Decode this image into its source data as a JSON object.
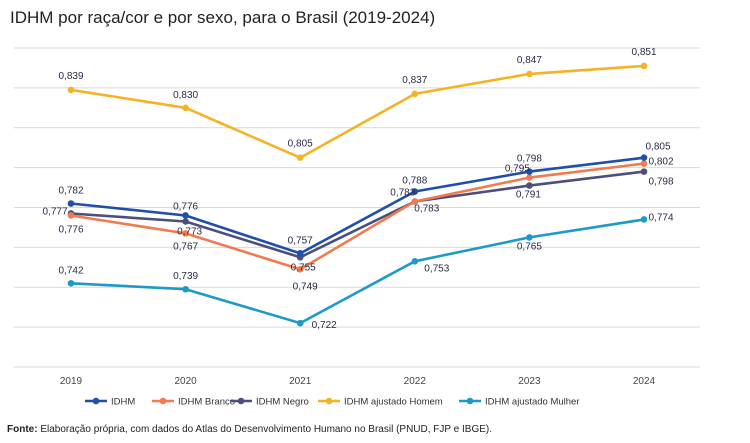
{
  "title": "IDHM por raça/cor e por sexo, para o Brasil (2019-2024)",
  "footer": {
    "label": "Fonte:",
    "text": " Elaboração própria, com dados do Atlas do Desenvolvimento Humano no Brasil (PNUD, FJP e IBGE)."
  },
  "chart_data": {
    "type": "line",
    "title": "IDHM por raça/cor e por sexo, para o Brasil (2019-2024)",
    "x": [
      "2019",
      "2020",
      "2021",
      "2022",
      "2023",
      "2024"
    ],
    "ylim": [
      0.7,
      0.86
    ],
    "grid": true,
    "legend_position": "bottom",
    "series": [
      {
        "name": "IDHM",
        "color": "#1f4fa8",
        "values": [
          0.782,
          0.776,
          0.757,
          0.788,
          0.798,
          0.805
        ],
        "labels": [
          "0,782",
          "0,776",
          "0,757",
          "0,788",
          "0,798",
          "0,805"
        ]
      },
      {
        "name": "IDHM Branco",
        "color": "#f07b4f",
        "values": [
          0.776,
          0.767,
          0.749,
          0.783,
          0.795,
          0.802
        ],
        "labels": [
          "0,776",
          "0,767",
          "0,749",
          "0,783",
          "0,795",
          "0,802"
        ]
      },
      {
        "name": "IDHM Negro",
        "color": "#4b4f7c",
        "values": [
          0.777,
          0.773,
          0.755,
          0.783,
          0.791,
          0.798
        ],
        "labels": [
          "0,777",
          "0,773",
          "0,755",
          "0,783",
          "0,791",
          "0,798"
        ]
      },
      {
        "name": "IDHM ajustado Homem",
        "color": "#f5b324",
        "values": [
          0.839,
          0.83,
          0.805,
          0.837,
          0.847,
          0.851
        ],
        "labels": [
          "0,839",
          "0,830",
          "0,805",
          "0,837",
          "0,847",
          "0,851"
        ]
      },
      {
        "name": "IDHM ajustado Mulher",
        "color": "#1e9ac8",
        "values": [
          0.742,
          0.739,
          0.722,
          0.753,
          0.765,
          0.774
        ],
        "labels": [
          "0,742",
          "0,739",
          "0,722",
          "0,753",
          "0,765",
          "0,774"
        ]
      }
    ]
  }
}
